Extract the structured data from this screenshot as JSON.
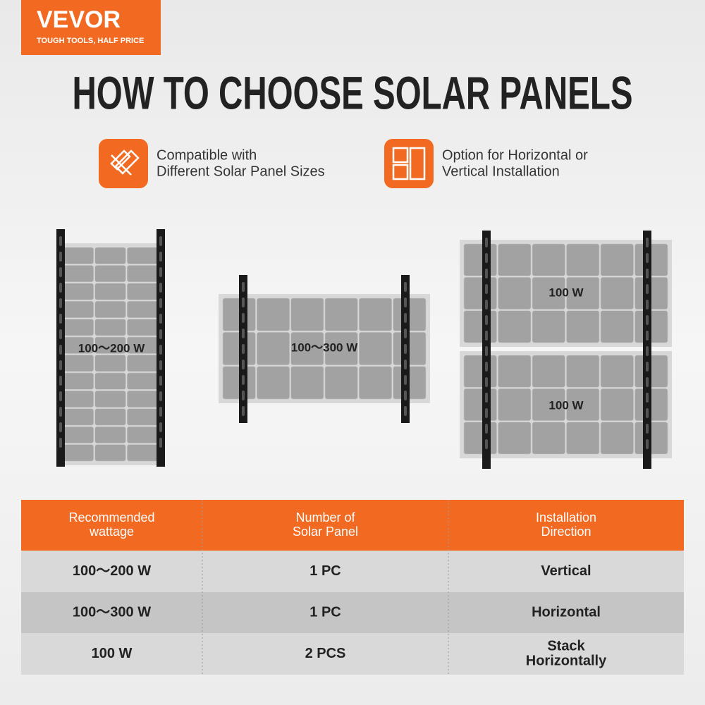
{
  "brand": {
    "name": "VEVOR",
    "tagline": "TOUGH TOOLS, HALF PRICE"
  },
  "title": "HOW TO CHOOSE SOLAR PANELS",
  "features": [
    {
      "lines": [
        "Compatible with",
        "Different Solar Panel Sizes"
      ]
    },
    {
      "lines": [
        "Option for Horizontal or",
        "Vertical Installation"
      ]
    }
  ],
  "panels": [
    {
      "label": "100～200 W"
    },
    {
      "label": "100～300 W"
    },
    {
      "label": "100 W"
    },
    {
      "label": "100 W"
    }
  ],
  "table": {
    "header": [
      [
        "Recommended",
        "wattage"
      ],
      [
        "Number of",
        "Solar Panel"
      ],
      [
        "Installation",
        "Direction"
      ]
    ],
    "rows": [
      [
        [
          "100～200 W"
        ],
        [
          "1 PC"
        ],
        [
          "Vertical"
        ]
      ],
      [
        [
          "100～300 W"
        ],
        [
          "1 PC"
        ],
        [
          "Horizontal"
        ]
      ],
      [
        [
          "100 W"
        ],
        [
          "2 PCS"
        ],
        [
          "Stack",
          "Horizontally"
        ]
      ]
    ]
  }
}
